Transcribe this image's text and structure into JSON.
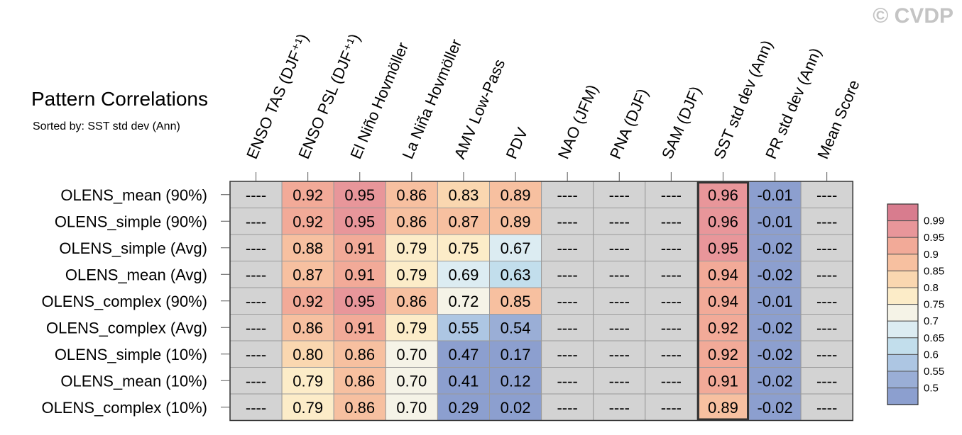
{
  "watermark": "© CVDP",
  "chart_data": {
    "type": "heatmap",
    "title": "Pattern Correlations",
    "subtitle": "Sorted by: SST std dev (Ann)",
    "columns": [
      "ENSO TAS (DJF⁺¹)",
      "ENSO PSL (DJF⁺¹)",
      "El Niño Hovmöller",
      "La Niña Hovmöller",
      "AMV Low-Pass",
      "PDV",
      "NAO (JFM)",
      "PNA (DJF)",
      "SAM (DJF)",
      "SST std dev (Ann)",
      "PR std dev (Ann)",
      "Mean Score"
    ],
    "rows": [
      "OLENS_mean (90%)",
      "OLENS_simple (90%)",
      "OLENS_simple (Avg)",
      "OLENS_mean (Avg)",
      "OLENS_complex (90%)",
      "OLENS_complex (Avg)",
      "OLENS_simple (10%)",
      "OLENS_mean (10%)",
      "OLENS_complex (10%)"
    ],
    "values": [
      [
        null,
        0.92,
        0.95,
        0.86,
        0.83,
        0.89,
        null,
        null,
        null,
        0.96,
        -0.01,
        null
      ],
      [
        null,
        0.92,
        0.95,
        0.86,
        0.87,
        0.89,
        null,
        null,
        null,
        0.96,
        -0.01,
        null
      ],
      [
        null,
        0.88,
        0.91,
        0.79,
        0.75,
        0.67,
        null,
        null,
        null,
        0.95,
        -0.02,
        null
      ],
      [
        null,
        0.87,
        0.91,
        0.79,
        0.69,
        0.63,
        null,
        null,
        null,
        0.94,
        -0.02,
        null
      ],
      [
        null,
        0.92,
        0.95,
        0.86,
        0.72,
        0.85,
        null,
        null,
        null,
        0.94,
        -0.01,
        null
      ],
      [
        null,
        0.86,
        0.91,
        0.79,
        0.55,
        0.54,
        null,
        null,
        null,
        0.92,
        -0.02,
        null
      ],
      [
        null,
        0.8,
        0.86,
        0.7,
        0.47,
        0.17,
        null,
        null,
        null,
        0.92,
        -0.02,
        null
      ],
      [
        null,
        0.79,
        0.86,
        0.7,
        0.41,
        0.12,
        null,
        null,
        null,
        0.91,
        -0.02,
        null
      ],
      [
        null,
        0.79,
        0.86,
        0.7,
        0.29,
        0.02,
        null,
        null,
        null,
        0.89,
        -0.02,
        null
      ]
    ],
    "missing_label": "----",
    "missing_color": "#d3d3d3",
    "highlighted_column": "SST std dev (Ann)",
    "colorbar": {
      "levels": [
        "0.99",
        "0.95",
        "0.9",
        "0.85",
        "0.8",
        "0.75",
        "0.7",
        "0.65",
        "0.6",
        "0.55",
        "0.5"
      ],
      "colors": [
        "#d87c8e",
        "#e8969a",
        "#f2aa98",
        "#f7c0a0",
        "#fad7b0",
        "#fcecc8",
        "#f5f3e7",
        "#dcecf2",
        "#c2deec",
        "#adc6e3",
        "#9aaed6",
        "#8c9fcf"
      ],
      "placement": "right"
    }
  }
}
